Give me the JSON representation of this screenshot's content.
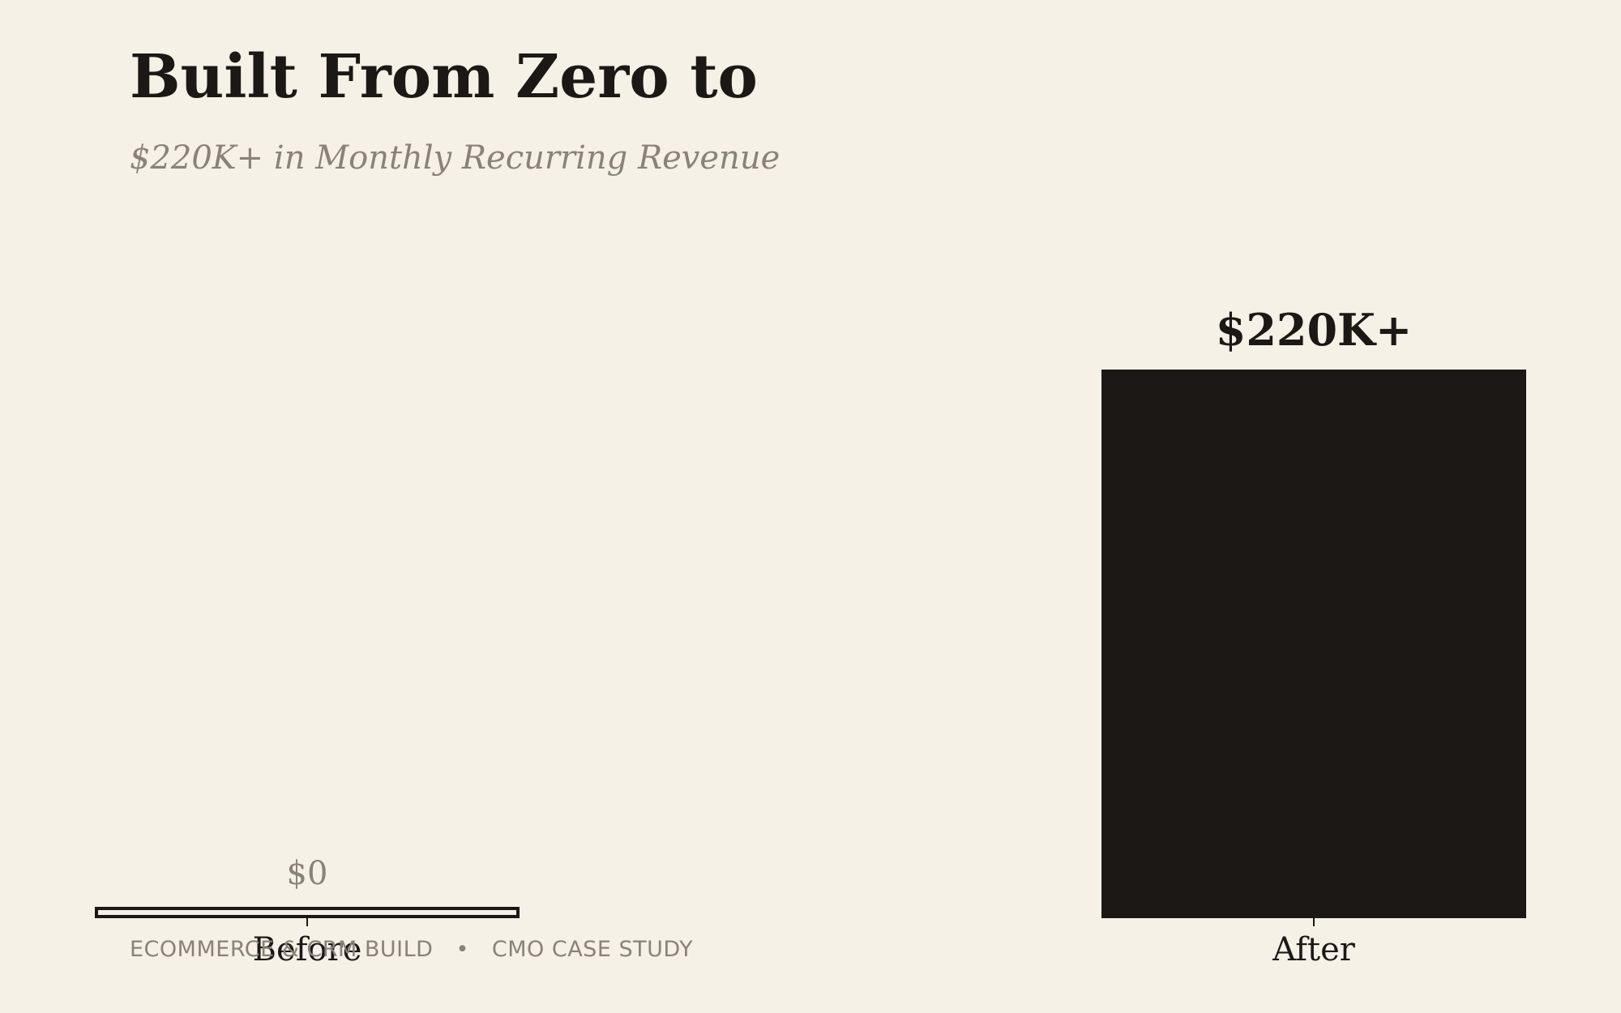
{
  "title": "Built From Zero to",
  "subtitle": "$220K+ in Monthly Recurring Revenue",
  "footer": {
    "left": "ECOMMERCE & CRM BUILD",
    "separator": "•",
    "right": "CMO CASE STUDY"
  },
  "colors": {
    "background": "#f5f1e7",
    "bar_after": "#1c1815",
    "bar_before_fill": "#f5f1e7",
    "bar_before_stroke": "#1c1815",
    "muted_text": "#8a8278",
    "dark_text": "#1c1815"
  },
  "chart_data": {
    "type": "bar",
    "title": "Built From Zero to",
    "subtitle": "$220K+ in Monthly Recurring Revenue",
    "categories": [
      "Before",
      "After"
    ],
    "values": [
      0,
      220000
    ],
    "data_labels": [
      "$0",
      "$220K+"
    ],
    "xlabel": "",
    "ylabel": "",
    "ylim": [
      0,
      220000
    ],
    "grid": false
  }
}
